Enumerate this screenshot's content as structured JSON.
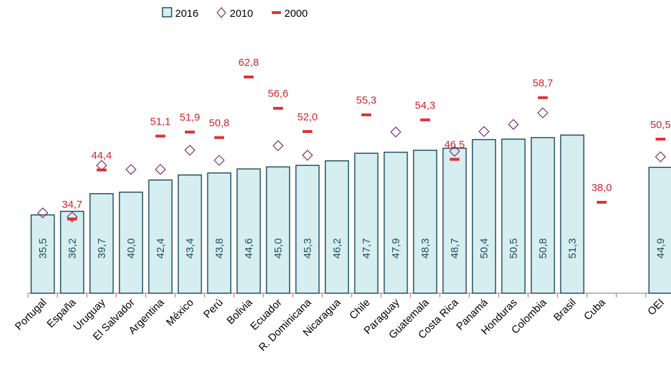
{
  "chart_data": {
    "type": "bar",
    "categories": [
      "Portugal",
      "España",
      "Uruguay",
      "El Salvador",
      "Argentina",
      "México",
      "Perú",
      "Bolivia",
      "Ecuador",
      "R. Dominicana",
      "Nicaragua",
      "Chile",
      "Paraguay",
      "Guatemala",
      "Costa Rica",
      "Panamá",
      "Honduras",
      "Colombia",
      "Brasil",
      "Cuba",
      null,
      "OEI"
    ],
    "ylim": [
      20,
      70
    ],
    "series": [
      {
        "name": "2016",
        "color": "#d6eef0",
        "edge_color": "#1f4e5f",
        "marker": "bar",
        "values": [
          35.5,
          36.2,
          39.7,
          40.0,
          42.4,
          43.4,
          43.8,
          44.6,
          45.0,
          45.3,
          46.2,
          47.7,
          47.9,
          48.3,
          48.7,
          50.4,
          50.5,
          50.8,
          51.3,
          null,
          null,
          44.9
        ],
        "value_labels": [
          "35,5",
          "36,2",
          "39,7",
          "40,0",
          "42,4",
          "43,4",
          "43,8",
          "44,6",
          "45,0",
          "45,3",
          "46,2",
          "47,7",
          "47,9",
          "48,3",
          "48,7",
          "50,4",
          "50,5",
          "50,8",
          "51,3",
          null,
          null,
          "44,9"
        ]
      },
      {
        "name": "2010",
        "color": "#7b2d6e",
        "marker": "diamond",
        "values": [
          35.9,
          35.1,
          45.3,
          44.5,
          44.5,
          48.3,
          46.3,
          null,
          49.2,
          47.3,
          null,
          null,
          51.9,
          null,
          48.1,
          52.0,
          53.4,
          55.7,
          null,
          null,
          null,
          47.0
        ]
      },
      {
        "name": "2000",
        "color": "#e03030",
        "marker": "dash",
        "values": [
          null,
          34.7,
          44.4,
          null,
          51.1,
          51.9,
          50.8,
          62.8,
          56.6,
          52.0,
          null,
          55.3,
          null,
          54.3,
          46.5,
          null,
          null,
          58.7,
          null,
          38.0,
          null,
          50.5
        ],
        "value_labels": [
          null,
          "34,7",
          "44,4",
          null,
          "51,1",
          "51,9",
          "50,8",
          "62,8",
          "56,6",
          "52,0",
          null,
          "55,3",
          null,
          "54,3",
          "46,5",
          null,
          null,
          "58,7",
          null,
          "38,0",
          null,
          "50,5"
        ]
      }
    ]
  }
}
